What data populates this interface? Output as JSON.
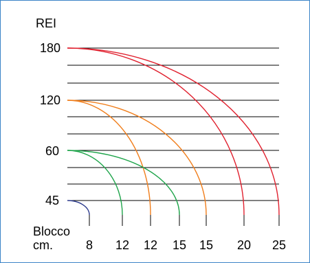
{
  "chart_data": {
    "type": "line",
    "y_axis_label": "REI",
    "y_tick_labels": [
      "180",
      "120",
      "60",
      "45"
    ],
    "x_label_lines": [
      "Blocco",
      "cm."
    ],
    "x_tick_labels": [
      "8",
      "12",
      "12",
      "15",
      "15",
      "20",
      "25"
    ],
    "series": [
      {
        "block_cm": "8",
        "rei_start": 45,
        "color": "#2b3a8c"
      },
      {
        "block_cm": "12",
        "rei_start": 60,
        "color": "#1ea44a"
      },
      {
        "block_cm": "12",
        "rei_start": 120,
        "color": "#f07d1a"
      },
      {
        "block_cm": "15",
        "rei_start": 60,
        "color": "#1ea44a"
      },
      {
        "block_cm": "15",
        "rei_start": 120,
        "color": "#f07d1a"
      },
      {
        "block_cm": "20",
        "rei_start": 180,
        "color": "#e0202e"
      },
      {
        "block_cm": "25",
        "rei_start": 180,
        "color": "#e0202e"
      }
    ],
    "grid": true
  }
}
